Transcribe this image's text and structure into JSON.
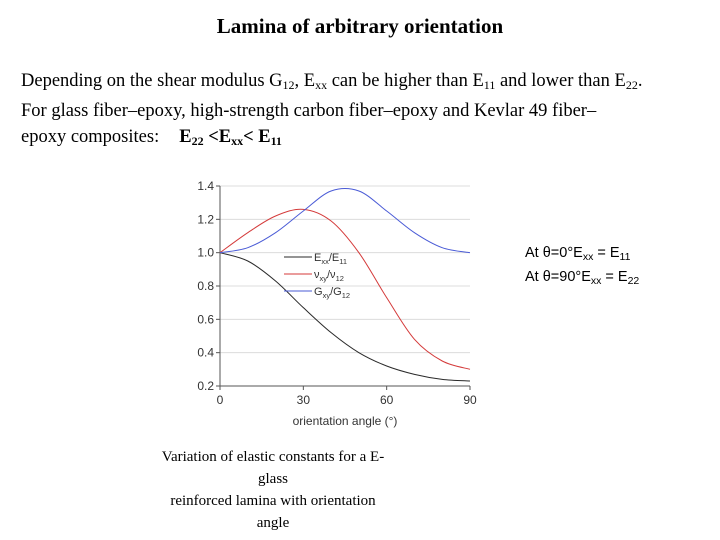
{
  "slide": {
    "title": "Lamina of arbitrary orientation",
    "para": {
      "l1a": "Depending on the shear modulus G",
      "l1b": "12",
      "l1c": ", E",
      "l1d": "xx",
      "l1e": " can be higher than E",
      "l1f": "11",
      "l1g": " and lower than E",
      "l1h": "22",
      "l1i": ".",
      "l2": "For glass fiber–epoxy, high-strength carbon fiber–epoxy and Kevlar 49 fiber–",
      "l3a": "epoxy composites:",
      "l3b": "E",
      "l3c": "22",
      "l3d": " <E",
      "l3e": "xx",
      "l3f": "< E",
      "l3g": "11"
    },
    "side": {
      "a1": "At ",
      "a2": "θ=0°E",
      "a3": "xx",
      "a4": " = E",
      "a5": "11",
      "b1": "At ",
      "b2": "θ=90°E",
      "b3": "xx",
      "b4": " = E",
      "b5": "22"
    },
    "caption": {
      "line1": "Variation of elastic constants for a E-glass",
      "line2": "reinforced lamina with orientation angle"
    }
  },
  "chart_data": {
    "type": "line",
    "xlabel": "orientation angle (°)",
    "ylabel": "",
    "xlim": [
      0,
      90
    ],
    "ylim": [
      0.2,
      1.4
    ],
    "xticks": [
      0,
      30,
      60,
      90
    ],
    "yticks": [
      0.2,
      0.4,
      0.6,
      0.8,
      1.0,
      1.2,
      1.4
    ],
    "ytick_labels": [
      "0.2",
      "0.4",
      "0.6",
      "0.8",
      "1.0",
      "1.2",
      "1.4"
    ],
    "legend_placement": "center",
    "series": [
      {
        "key": "exx",
        "color": "#2a2a2a",
        "legend": {
          "base": "E",
          "sub1": "xx",
          "mid": "/E",
          "sub2": "11"
        },
        "x": [
          0,
          10,
          20,
          30,
          40,
          50,
          60,
          70,
          80,
          90
        ],
        "y": [
          1.0,
          0.95,
          0.83,
          0.67,
          0.52,
          0.4,
          0.32,
          0.27,
          0.24,
          0.23
        ]
      },
      {
        "key": "nuxy",
        "color": "#d43a3a",
        "legend": {
          "base": "ν",
          "sub1": "xy",
          "mid": "/ν",
          "sub2": "12"
        },
        "x": [
          0,
          10,
          20,
          30,
          40,
          50,
          60,
          70,
          80,
          90
        ],
        "y": [
          1.0,
          1.12,
          1.22,
          1.26,
          1.19,
          1.0,
          0.73,
          0.48,
          0.35,
          0.3
        ]
      },
      {
        "key": "gxy",
        "color": "#4a5bd6",
        "legend": {
          "base": "G",
          "sub1": "xy",
          "mid": "/G",
          "sub2": "12"
        },
        "x": [
          0,
          10,
          20,
          30,
          40,
          50,
          60,
          70,
          80,
          90
        ],
        "y": [
          1.0,
          1.03,
          1.12,
          1.25,
          1.37,
          1.37,
          1.25,
          1.12,
          1.03,
          1.0
        ]
      }
    ]
  }
}
